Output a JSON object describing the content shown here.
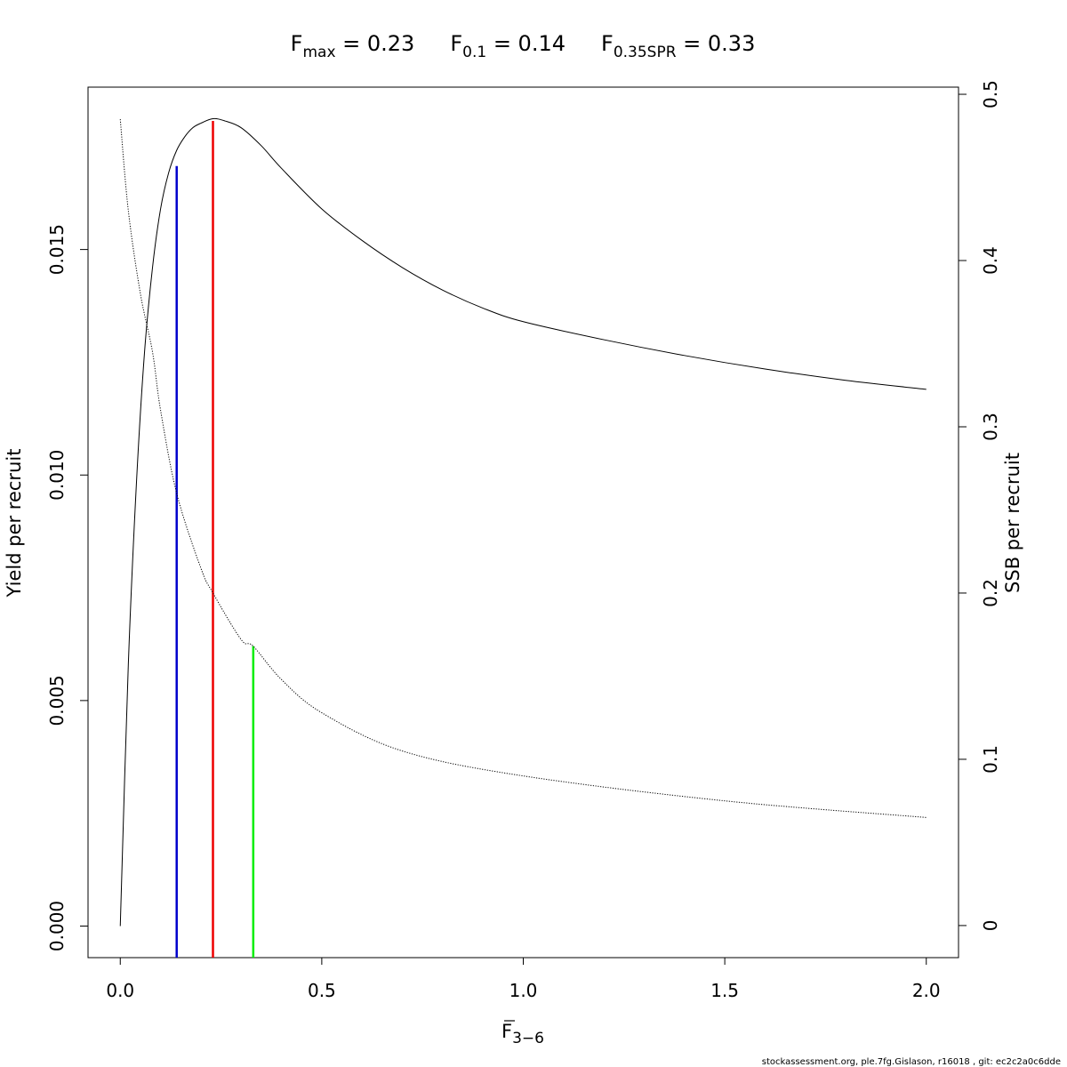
{
  "chart_data": {
    "type": "line",
    "title_parts": [
      {
        "main": "F",
        "sub": "max",
        "rest": " = 0.23"
      },
      {
        "main": "F",
        "sub": "0.1",
        "rest": " = 0.14"
      },
      {
        "main": "F",
        "sub": "0.35SPR",
        "rest": " = 0.33"
      }
    ],
    "xlabel": {
      "main": "F",
      "sub": "3−6"
    },
    "ylabel": "Yield per recruit",
    "y2label": "SSB per recruit",
    "xlim": [
      -0.08,
      2.08
    ],
    "ylim": [
      -0.0007,
      0.0186
    ],
    "y2lim": [
      -0.0193,
      0.5043
    ],
    "xticks": [
      "0.0",
      "0.5",
      "1.0",
      "1.5",
      "2.0"
    ],
    "yticks": [
      "0.000",
      "0.005",
      "0.010",
      "0.015"
    ],
    "y2ticks": [
      "0",
      "0.1",
      "0.2",
      "0.3",
      "0.4",
      "0.5"
    ],
    "series": [
      {
        "axis": "left",
        "style": "solid",
        "x": [
          0,
          0.02,
          0.04,
          0.06,
          0.08,
          0.1,
          0.12,
          0.14,
          0.16,
          0.18,
          0.2,
          0.23,
          0.26,
          0.3,
          0.35,
          0.4,
          0.5,
          0.6,
          0.7,
          0.8,
          0.9,
          1.0,
          1.2,
          1.4,
          1.6,
          1.8,
          2.0
        ],
        "values": [
          0,
          0.0058,
          0.0098,
          0.0127,
          0.0146,
          0.0159,
          0.0167,
          0.0172,
          0.0175,
          0.0177,
          0.0178,
          0.0179,
          0.01785,
          0.0177,
          0.0173,
          0.0168,
          0.0159,
          0.0152,
          0.0146,
          0.0141,
          0.0137,
          0.0134,
          0.013,
          0.01265,
          0.01235,
          0.0121,
          0.0119
        ]
      },
      {
        "axis": "right",
        "style": "dotted",
        "x": [
          0,
          0.02,
          0.05,
          0.08,
          0.1,
          0.14,
          0.2,
          0.23,
          0.3,
          0.33,
          0.4,
          0.5,
          0.7,
          1.0,
          1.5,
          2.0
        ],
        "values": [
          0.485,
          0.43,
          0.38,
          0.345,
          0.31,
          0.26,
          0.215,
          0.2,
          0.172,
          0.168,
          0.148,
          0.128,
          0.105,
          0.09,
          0.075,
          0.065
        ]
      }
    ],
    "reference_lines": [
      {
        "name": "F0.1",
        "x": 0.14,
        "y": 0.01685,
        "color": "#0000cc"
      },
      {
        "name": "Fmax",
        "x": 0.23,
        "y": 0.01785,
        "color": "#ee0000"
      },
      {
        "name": "F0.35SPR",
        "x": 0.33,
        "y2": 0.168,
        "color": "#00ee00"
      }
    ],
    "footer": "stockassessment.org, ple.7fg.Gislason, r16018 , git: ec2c2a0c6dde"
  }
}
